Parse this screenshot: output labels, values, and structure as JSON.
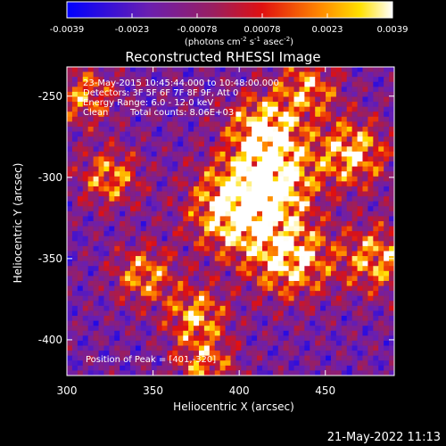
{
  "chart_data": [
    {
      "type": "colorbar",
      "colormap": "blue-purple-red-orange-yellow-white",
      "range": [
        -0.0039,
        0.0039
      ],
      "tick_labels": [
        "-0.0039",
        "-0.0023",
        "-0.00078",
        "0.00078",
        "0.0023",
        "0.0039"
      ],
      "unit_label": {
        "prefix": "(photons cm",
        "cm_exp": "-2",
        "s_part": " s",
        "s_exp": "-1",
        "asec_part": " asec",
        "asec_exp": "-2",
        "suffix": ")"
      }
    },
    {
      "type": "heatmap",
      "title": "Reconstructed RHESSI Image",
      "xlabel": "Heliocentric X (arcsec)",
      "ylabel": "Heliocentric Y (arcsec)",
      "xlim": [
        300,
        490
      ],
      "ylim": [
        -422,
        -232
      ],
      "xticks": [
        300,
        350,
        400,
        450
      ],
      "yticks": [
        -250,
        -300,
        -350,
        -400
      ],
      "colorscale_range": [
        -0.0039,
        0.0039
      ],
      "peak": [
        401,
        -320
      ],
      "sources": [
        {
          "x": 400,
          "y": -320,
          "amplitude": 1.0,
          "sigma": 18
        },
        {
          "x": 420,
          "y": -300,
          "amplitude": 0.85,
          "sigma": 16
        },
        {
          "x": 415,
          "y": -270,
          "amplitude": 0.8,
          "sigma": 14
        },
        {
          "x": 430,
          "y": -350,
          "amplitude": 0.75,
          "sigma": 16
        },
        {
          "x": 465,
          "y": -285,
          "amplitude": 0.7,
          "sigma": 14
        },
        {
          "x": 480,
          "y": -350,
          "amplitude": 0.6,
          "sigma": 14
        },
        {
          "x": 325,
          "y": -300,
          "amplitude": 0.55,
          "sigma": 12
        },
        {
          "x": 345,
          "y": -360,
          "amplitude": 0.55,
          "sigma": 12
        },
        {
          "x": 375,
          "y": -385,
          "amplitude": 0.6,
          "sigma": 12
        },
        {
          "x": 310,
          "y": -250,
          "amplitude": 0.5,
          "sigma": 12
        },
        {
          "x": 380,
          "y": -415,
          "amplitude": 0.5,
          "sigma": 12
        },
        {
          "x": 440,
          "y": -245,
          "amplitude": 0.55,
          "sigma": 12
        }
      ],
      "annotations": {
        "time": "23-May-2015 10:45:44.000 to 10:48:00.000",
        "detectors": "Detectors: 3F 5F 6F 7F 8F 9F, Att 0",
        "energy": "Energy Range: 6.0 - 12.0 keV",
        "method": "Clean",
        "counts": "Total counts: 8.06E+03",
        "peak": "Position of Peak = [401,-320]"
      }
    }
  ],
  "footer": {
    "timestamp": "21-May-2022 11:13"
  }
}
